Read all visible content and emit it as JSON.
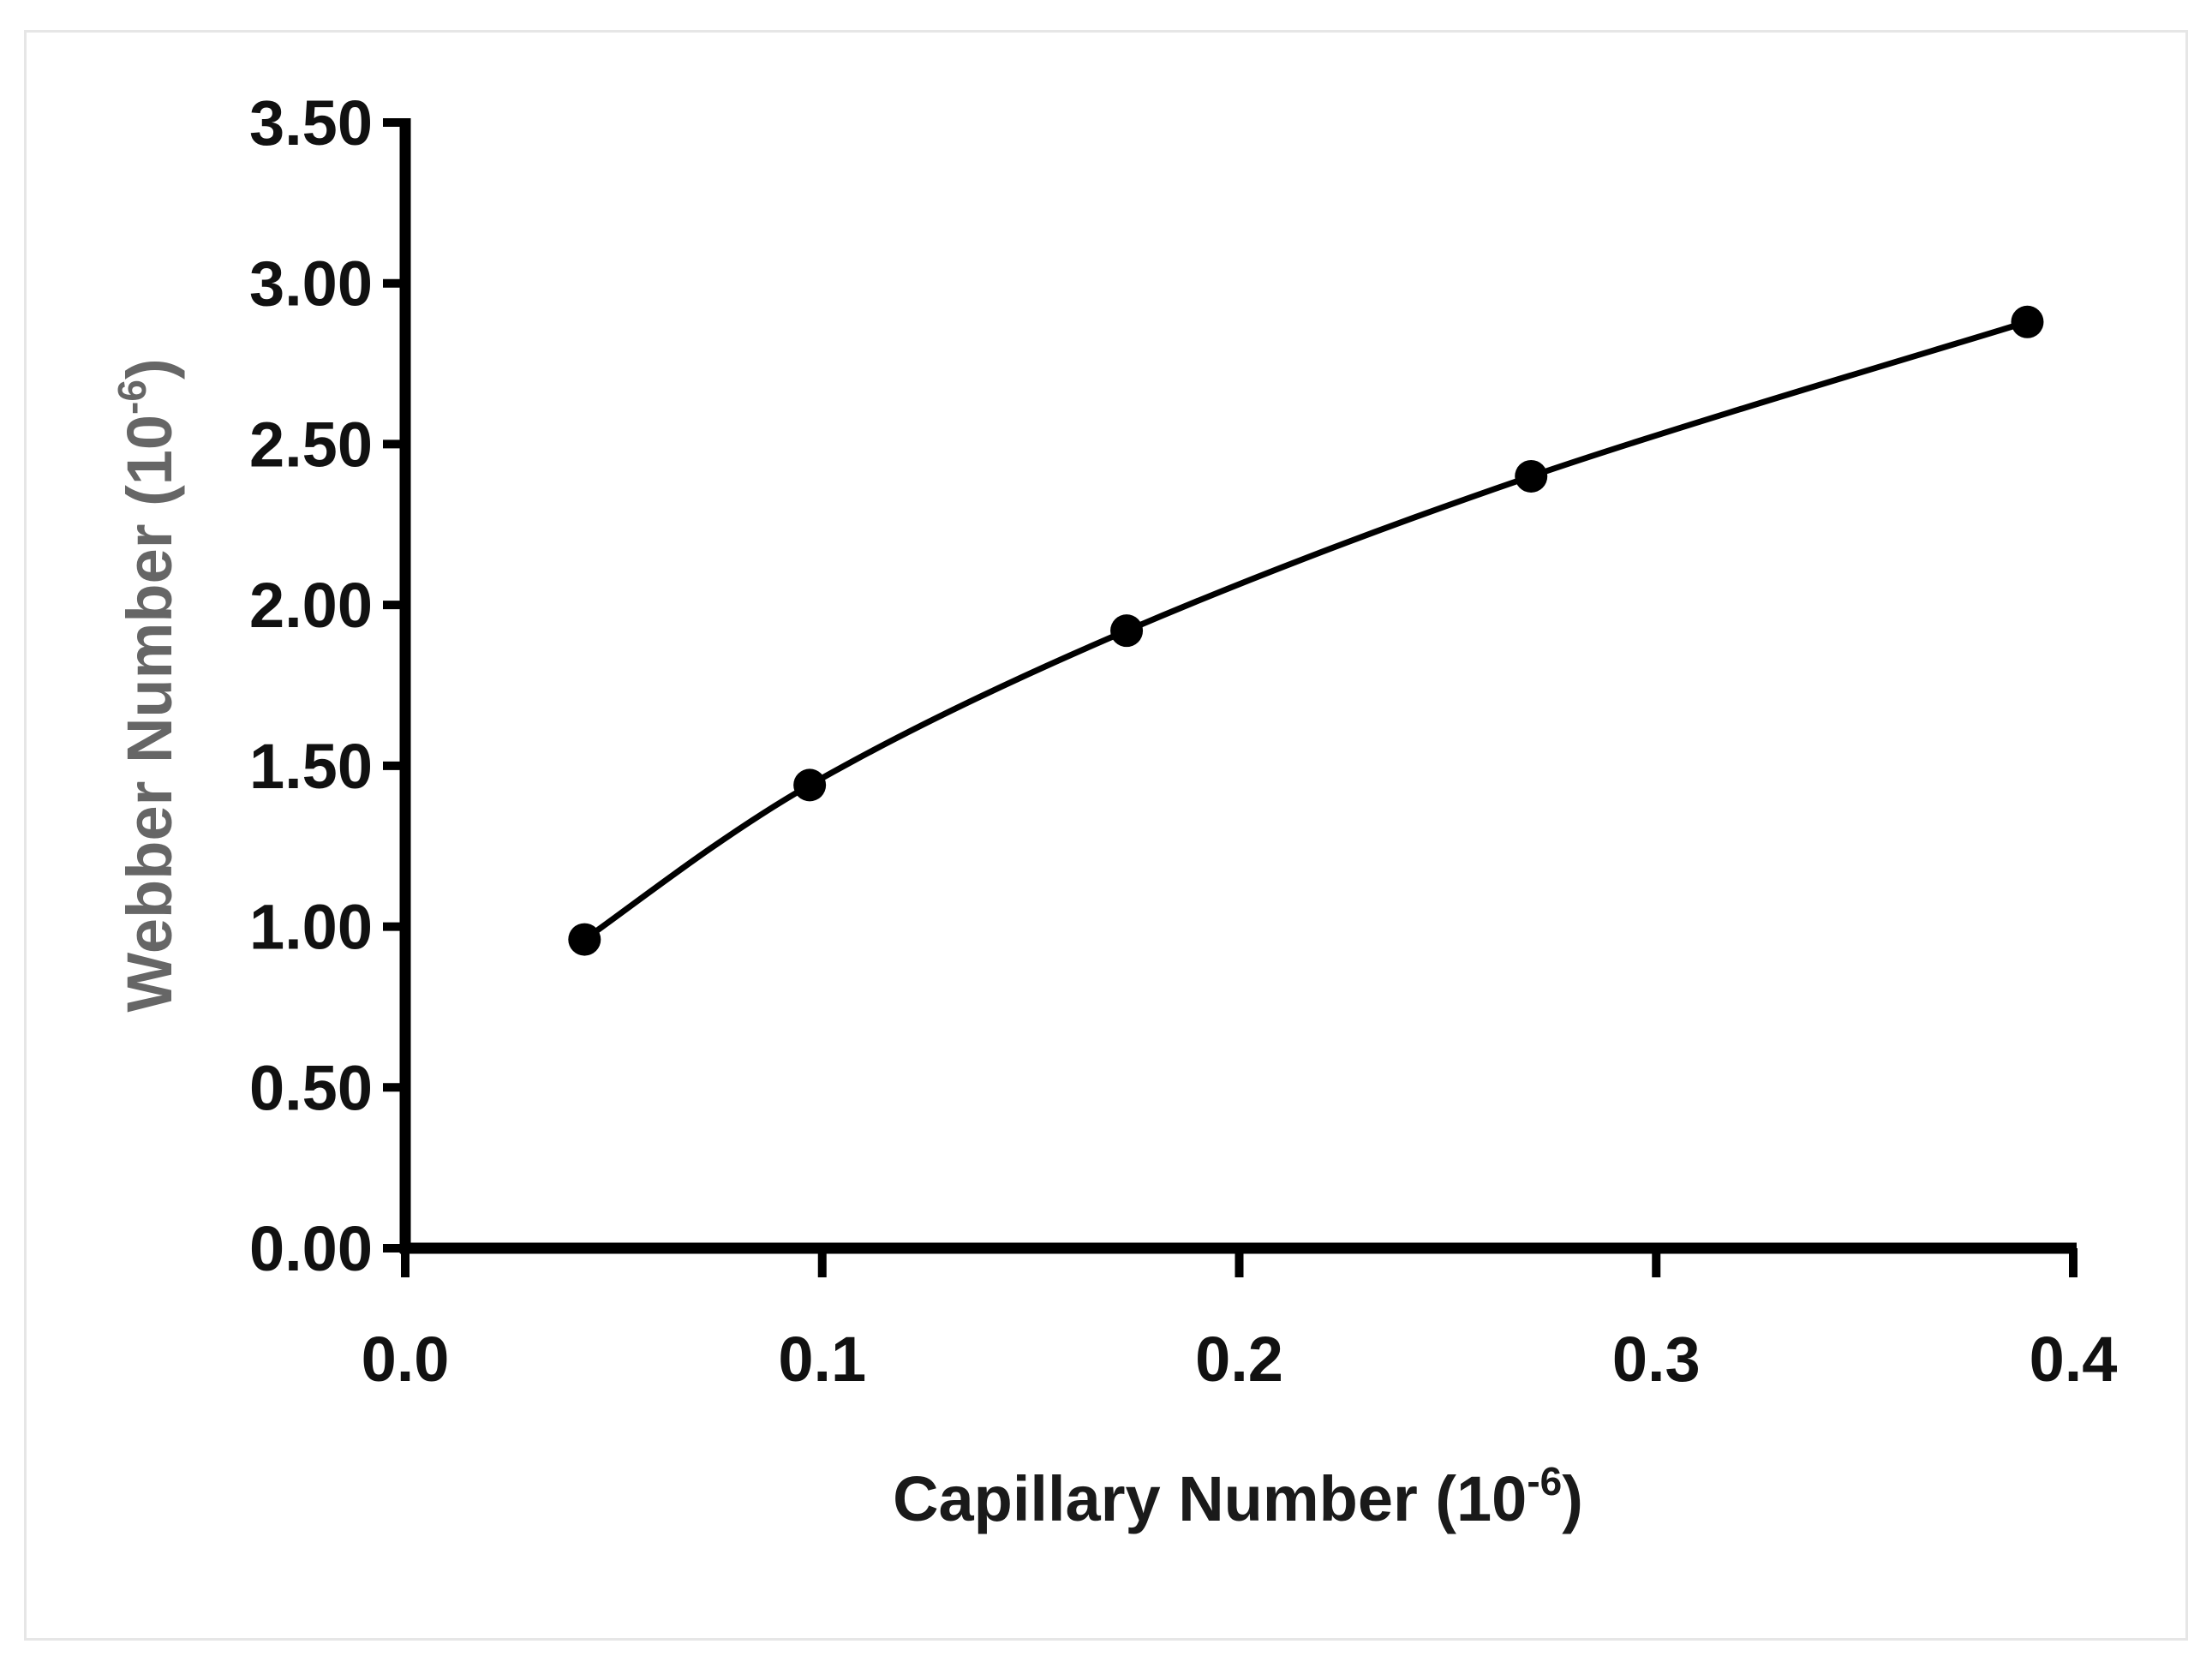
{
  "chart_data": {
    "type": "line",
    "title": "",
    "xlabel": "Capillary Number  (10",
    "xlabel_exponent": "-6",
    "xlabel_suffix": ")",
    "ylabel": "Webber Number  (10",
    "ylabel_exponent": "-6",
    "ylabel_suffix": ")",
    "xlim": [
      0.0,
      0.4
    ],
    "ylim": [
      0.0,
      3.5
    ],
    "x_ticks": [
      0.0,
      0.1,
      0.2,
      0.3,
      0.4
    ],
    "x_tick_labels": [
      "0.0",
      "0.1",
      "0.2",
      "0.3",
      "0.4"
    ],
    "y_ticks": [
      0.0,
      0.5,
      1.0,
      1.5,
      2.0,
      2.5,
      3.0,
      3.5
    ],
    "y_tick_labels": [
      "0.00",
      "0.50",
      "1.00",
      "1.50",
      "2.00",
      "2.50",
      "3.00",
      "3.50"
    ],
    "grid": false,
    "legend": "none",
    "series": [
      {
        "x": [
          0.043,
          0.097,
          0.173,
          0.27,
          0.389
        ],
        "y": [
          0.96,
          1.44,
          1.92,
          2.4,
          2.88
        ],
        "color": "#000000",
        "marker": "circle",
        "smooth": true
      }
    ],
    "colors": {
      "axis": "#000000",
      "tick_label": "#111111",
      "xlabel": "#1a1a1a",
      "ylabel": "#666666"
    }
  }
}
